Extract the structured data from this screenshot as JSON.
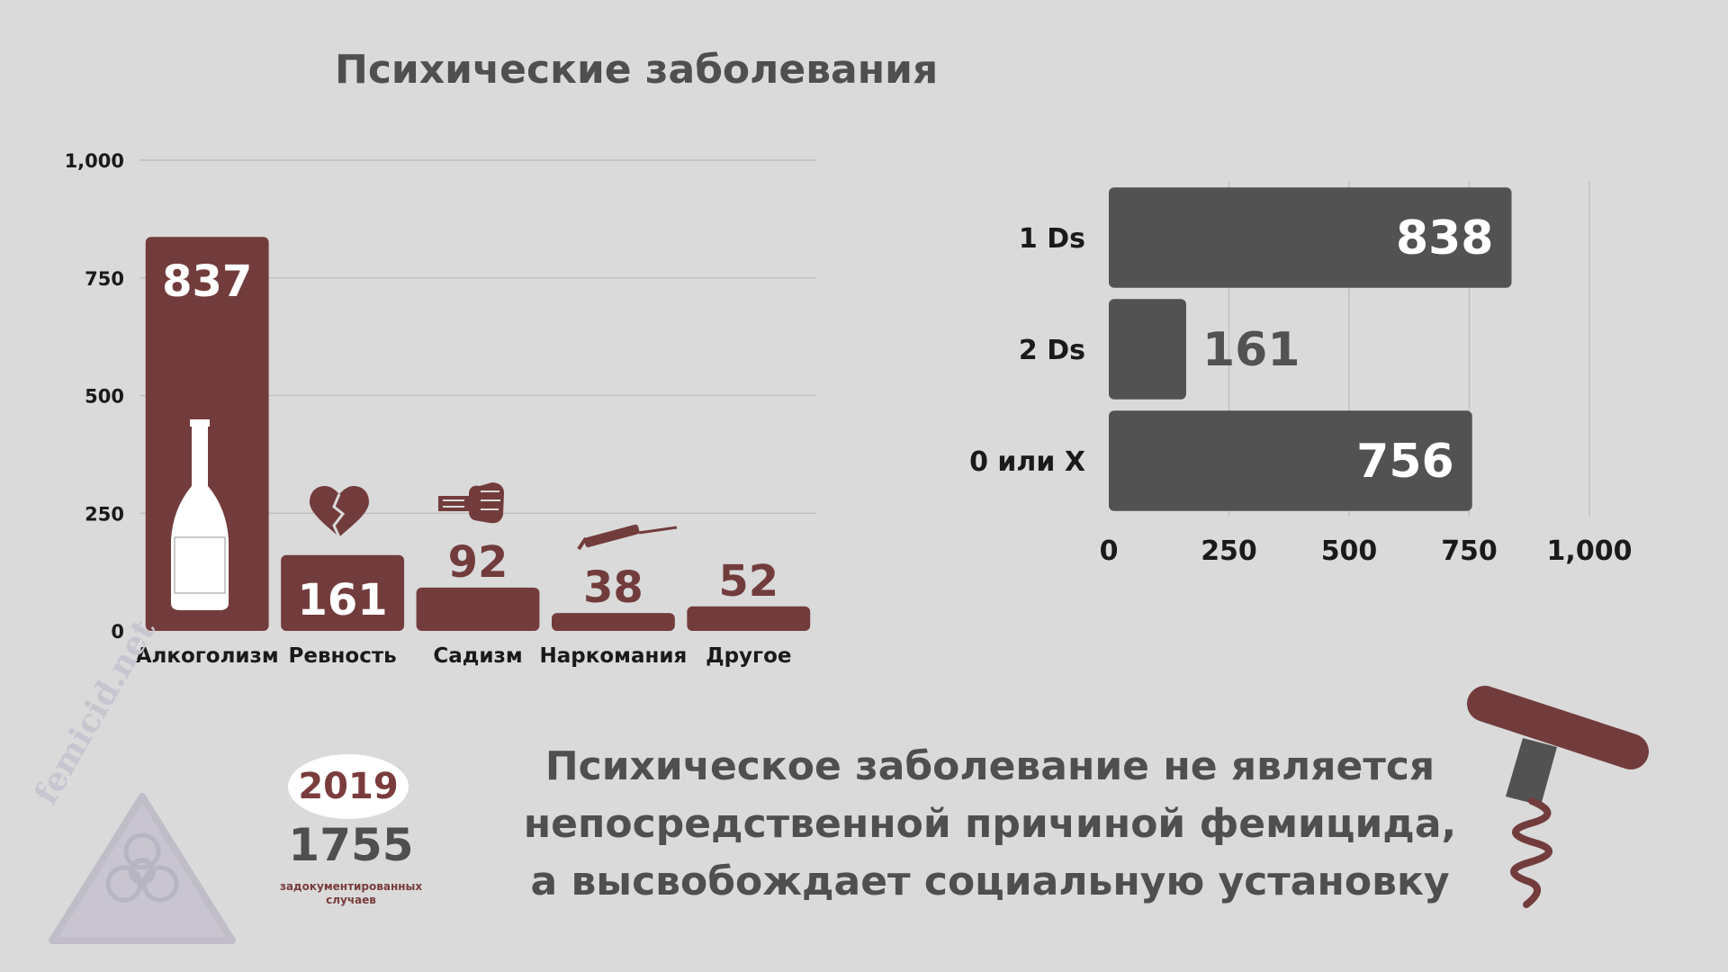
{
  "page": {
    "title": "Психические заболевания",
    "message_lines": [
      "Психическое заболевание не является",
      "непосредственной причиной фемицида,",
      "а высвобождает социальную установку"
    ],
    "year": "2019",
    "cases_count": "1755",
    "cases_label_lines": [
      "задокументированных",
      "случаев"
    ],
    "watermark": "femicid.net"
  },
  "colors": {
    "bar_primary": "#733c3c",
    "bar_secondary": "#525252",
    "background": "#dadada",
    "text_dark": "#4f4f4f"
  },
  "icons": [
    "bottle-icon",
    "broken-heart-icon",
    "fist-icon",
    "syringe-icon",
    "biohazard-icon",
    "corkscrew-icon"
  ],
  "chart_data": [
    {
      "type": "bar",
      "title": "Психические заболевания",
      "categories": [
        "Алкоголизм",
        "Ревность",
        "Садизм",
        "Наркомания",
        "Другое"
      ],
      "values": [
        837,
        161,
        92,
        38,
        52
      ],
      "value_labels": [
        "837",
        "161",
        "92",
        "38",
        "52"
      ],
      "ylim": [
        0,
        1000
      ],
      "yticks": [
        0,
        250,
        500,
        750,
        1000
      ],
      "ytick_labels": [
        "0",
        "250",
        "500",
        "750",
        "1,000"
      ],
      "grid": true
    },
    {
      "type": "bar",
      "orientation": "horizontal",
      "categories": [
        "1 Ds",
        "2 Ds",
        "0 или X"
      ],
      "values": [
        838,
        161,
        756
      ],
      "value_labels": [
        "838",
        "161",
        "756"
      ],
      "xlim": [
        0,
        1000
      ],
      "xticks": [
        0,
        250,
        500,
        750,
        1000
      ],
      "xtick_labels": [
        "0",
        "250",
        "500",
        "750",
        "1,000"
      ],
      "grid": true
    }
  ]
}
